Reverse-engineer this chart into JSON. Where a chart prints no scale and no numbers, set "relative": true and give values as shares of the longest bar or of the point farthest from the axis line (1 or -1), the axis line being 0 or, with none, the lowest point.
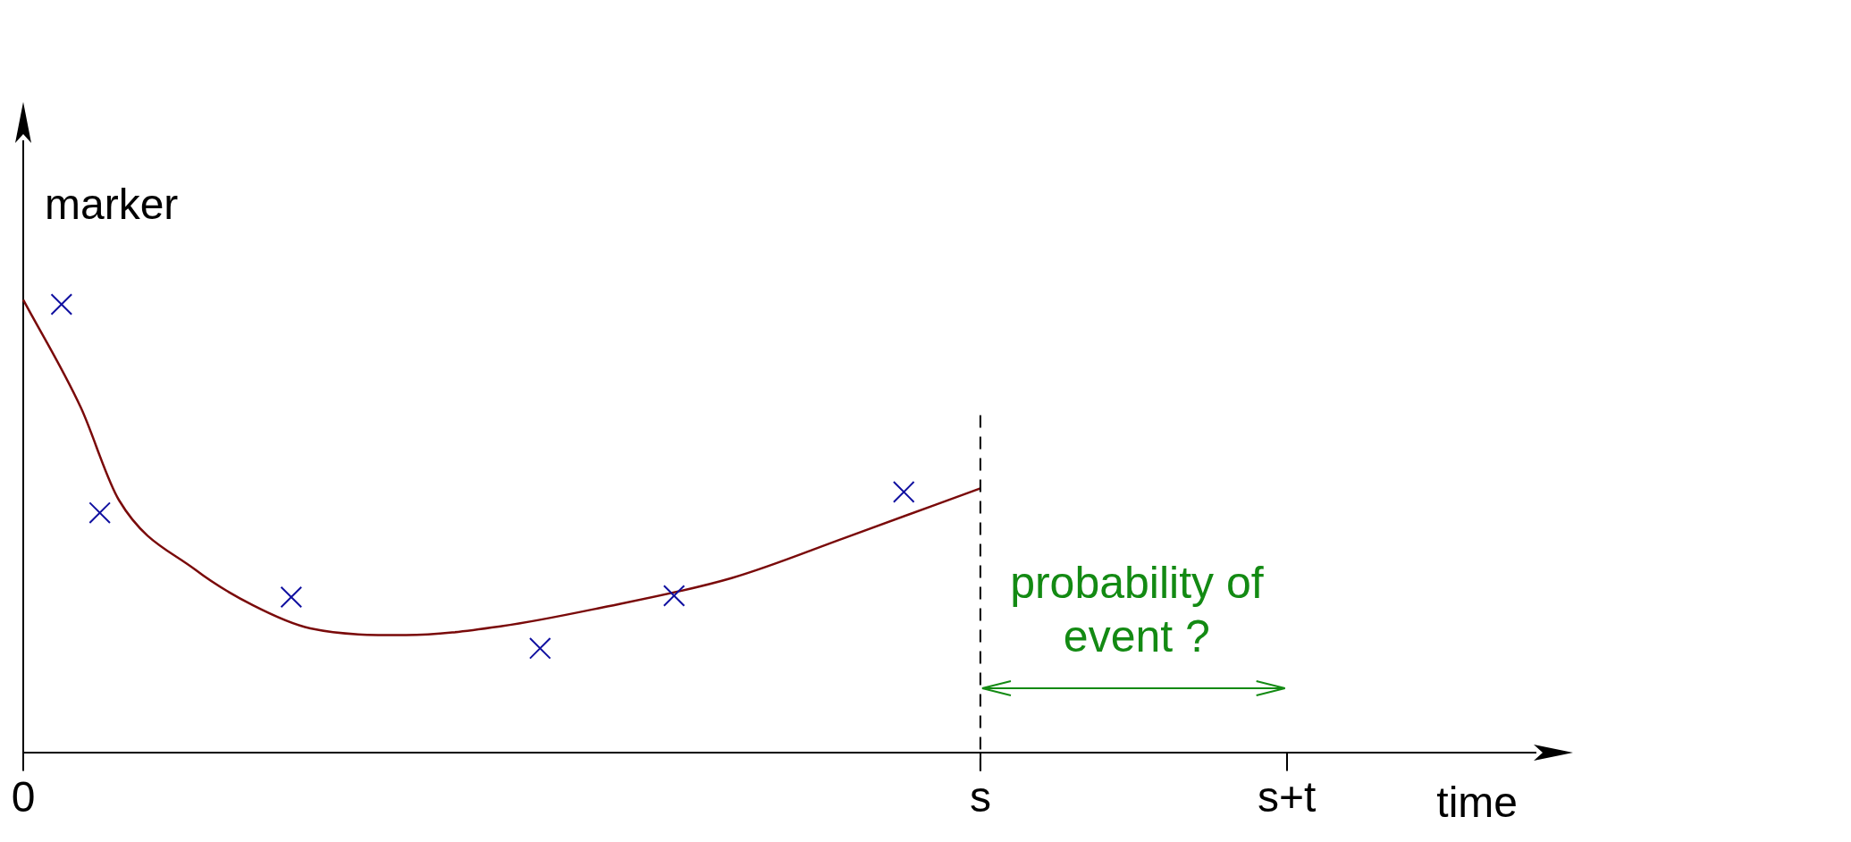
{
  "chart_data": {
    "type": "line",
    "relative": true,
    "xlabel": "time",
    "ylabel": "marker",
    "grid": false,
    "legend": false,
    "categories": [
      "0",
      null,
      null,
      null,
      null,
      null,
      null,
      null,
      null,
      null,
      null,
      null,
      null,
      null,
      null,
      null,
      null,
      null,
      null,
      null,
      null,
      null,
      null,
      null,
      null,
      null,
      null,
      null,
      null,
      null,
      null,
      null,
      null,
      null,
      null,
      null,
      null,
      null,
      null,
      null,
      null,
      null,
      null,
      null,
      null,
      null,
      null,
      null,
      null,
      null,
      "s",
      null,
      null,
      null,
      null,
      null,
      null,
      null,
      null,
      null,
      null,
      null,
      null,
      null,
      null,
      null,
      "s+t",
      null,
      null,
      null,
      null,
      null,
      null,
      null,
      null,
      null,
      null,
      null,
      null,
      null
    ],
    "series": [
      {
        "type": "scatter",
        "marker": "cross",
        "color": "#1010a0",
        "values": [
          null,
          null,
          0.99,
          null,
          0.53,
          null,
          null,
          null,
          null,
          null,
          null,
          null,
          null,
          null,
          0.344,
          null,
          null,
          null,
          null,
          null,
          null,
          null,
          null,
          null,
          null,
          null,
          null,
          0.231,
          null,
          null,
          null,
          null,
          null,
          null,
          0.347,
          null,
          null,
          null,
          null,
          null,
          null,
          null,
          null,
          null,
          null,
          null,
          0.576,
          null,
          null,
          null,
          null,
          null,
          null,
          null,
          null,
          null,
          null,
          null,
          null,
          null,
          null,
          null,
          null,
          null,
          null,
          null,
          null,
          null,
          null,
          null,
          null,
          null,
          null,
          null,
          null,
          null,
          null,
          null,
          null,
          null
        ]
      },
      {
        "marker": "none",
        "color": "#7a0a0a",
        "values": [
          1.0,
          null,
          null,
          0.763,
          null,
          0.558,
          null,
          null,
          null,
          0.404,
          null,
          null,
          0.326,
          null,
          null,
          0.275,
          null,
          null,
          null,
          null,
          0.26,
          null,
          null,
          null,
          null,
          0.28,
          null,
          null,
          null,
          null,
          0.319,
          null,
          null,
          null,
          null,
          null,
          null,
          0.386,
          null,
          null,
          null,
          null,
          null,
          0.476,
          null,
          null,
          null,
          null,
          null,
          null,
          0.584,
          null,
          null,
          null,
          null,
          null,
          null,
          null,
          null,
          null,
          null,
          null,
          null,
          null,
          null,
          null,
          null,
          null,
          null,
          null,
          null,
          null,
          null,
          null,
          null,
          null,
          null,
          null,
          null,
          null
        ]
      }
    ],
    "ref_lines": [
      {
        "axis": "x",
        "value": "s",
        "line_style": "dashed",
        "color": "#000000"
      }
    ],
    "annotations": [
      "probability of event ?"
    ]
  }
}
